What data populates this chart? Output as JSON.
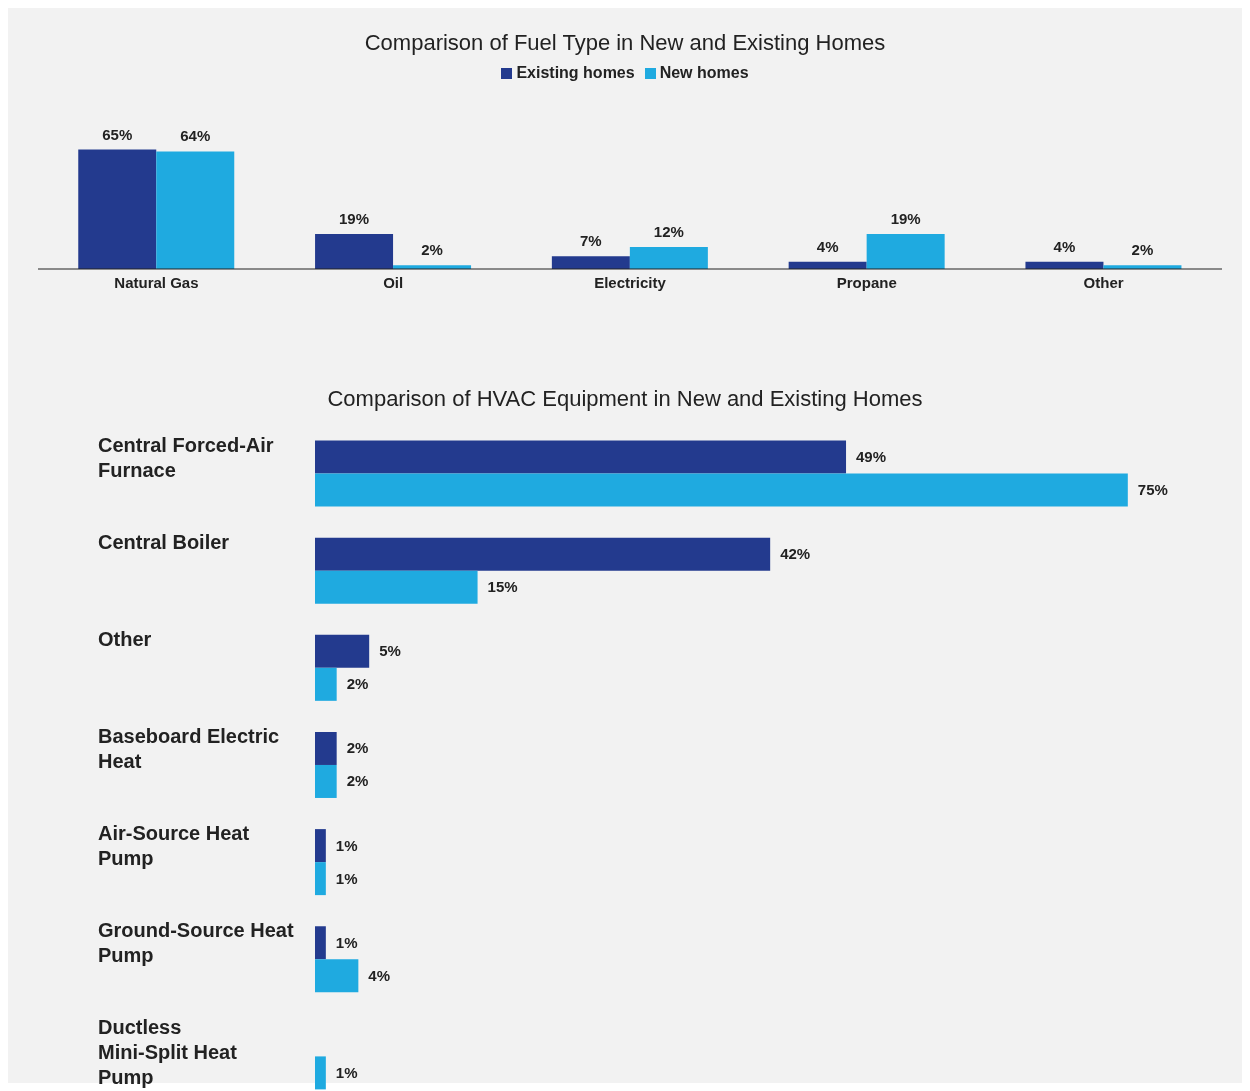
{
  "chart_data": [
    {
      "type": "bar",
      "title": "Comparison of Fuel Type in New and Existing Homes",
      "categories": [
        "Natural Gas",
        "Oil",
        "Electricity",
        "Propane",
        "Other"
      ],
      "legend": "top",
      "series": [
        {
          "name": "Existing homes",
          "color": "#233a8e",
          "values": [
            65,
            19,
            7,
            4,
            4
          ],
          "value_labels": [
            "65%",
            "19%",
            "7%",
            "4%",
            "4%"
          ]
        },
        {
          "name": "New homes",
          "color": "#1faae0",
          "values": [
            64,
            2,
            12,
            19,
            2
          ],
          "value_labels": [
            "64%",
            "2%",
            "12%",
            "19%",
            "2%"
          ]
        }
      ]
    },
    {
      "type": "bar",
      "orientation": "horizontal",
      "title": "Comparison of HVAC Equipment in New and Existing Homes",
      "categories": [
        "Central Forced-Air Furnace",
        "Central Boiler",
        "Other",
        "Baseboard Electric Heat",
        "Air-Source Heat Pump",
        "Ground-Source Heat Pump",
        "Ductless Mini-Split Heat Pump"
      ],
      "series": [
        {
          "color": "#233a8e",
          "values": [
            49,
            42,
            5,
            2,
            1,
            1,
            null
          ],
          "value_labels": [
            "49%",
            "42%",
            "5%",
            "2%",
            "1%",
            "1%",
            null
          ]
        },
        {
          "color": "#1faae0",
          "values": [
            75,
            15,
            2,
            2,
            1,
            4,
            1
          ],
          "value_labels": [
            "75%",
            "15%",
            "2%",
            "2%",
            "1%",
            "4%",
            "1%"
          ]
        }
      ]
    }
  ]
}
